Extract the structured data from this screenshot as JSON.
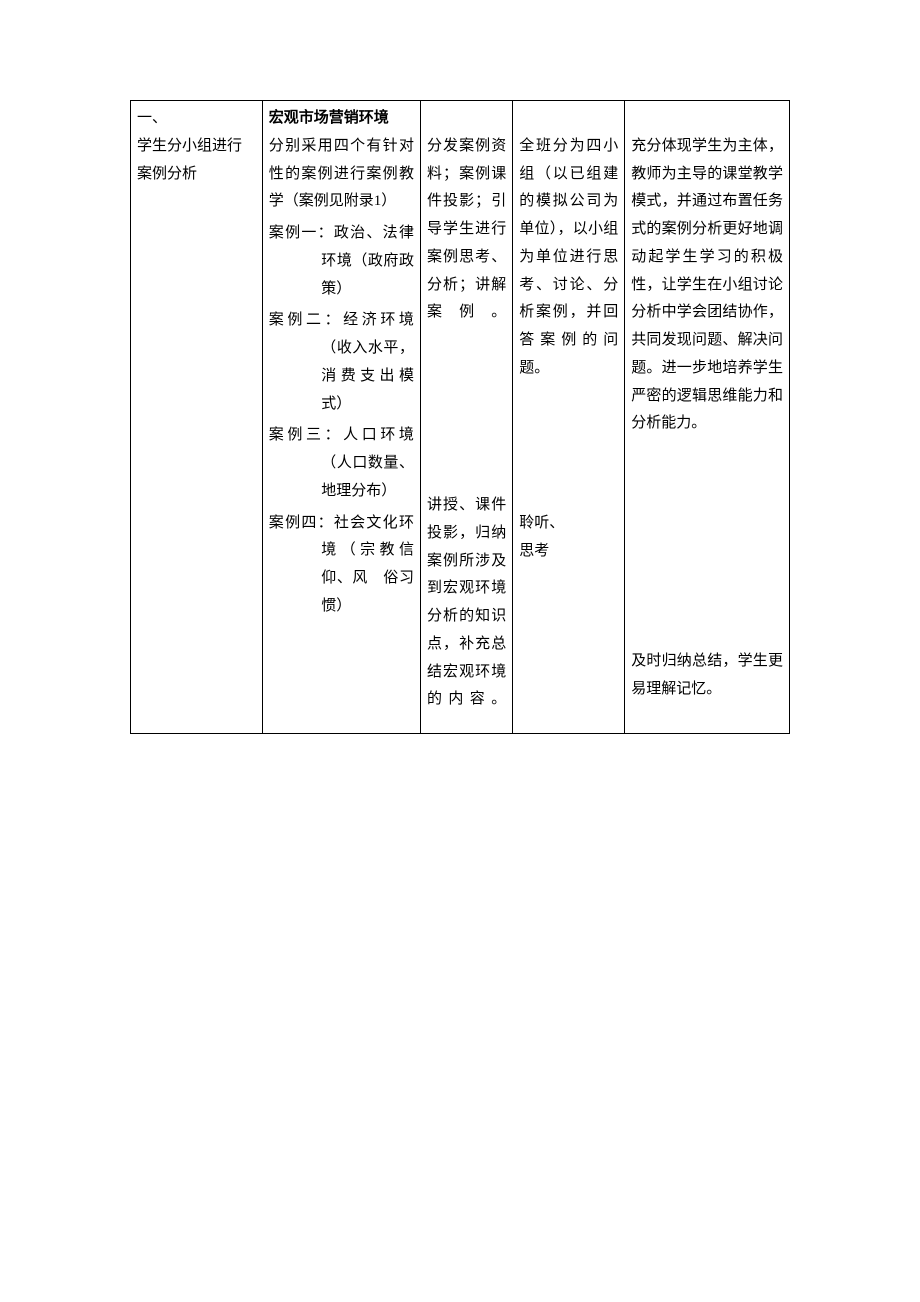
{
  "table": {
    "colors": {
      "border": "#000000",
      "text": "#000000",
      "background": "#ffffff"
    },
    "font": {
      "family": "SimSun",
      "size_pt": 11,
      "line_height": 1.85
    },
    "column_widths_pct": [
      20,
      24,
      14,
      17,
      25
    ],
    "row1": {
      "col1": {
        "line1": "一、",
        "line2": "学生分小组进行案例分析"
      },
      "col2": {
        "title": "宏观市场营销环境",
        "intro": "分别采用四个有针对性的案例进行案例教学（案例见附录1）",
        "case1_label": "案例一：",
        "case1_text": "政治、法律环境（政府政策）",
        "case2_label": "案例二：",
        "case2_text": "经济环境（收入水平，消费支出模式）",
        "case3_label": "案例三：",
        "case3_text": "人口环境（人口数量、地理分布）",
        "case4_label": "案例四：",
        "case4_text": "社会文化环境（宗教信仰、风　俗习惯）"
      },
      "col3_a": "分发案例资料；案例课件投影；引导学生进行案例思考、分析；讲解案例。",
      "col3_b": "讲授、课件投影，归纳案例所涉及到宏观环境分析的知识点，补充总结宏观环境的内容。",
      "col4_a": "全班分为四小组（以已组建的模拟公司为单位），以小组为单位进行思考、讨论、分析案例，并回答案例的问题。",
      "col4_b_line1": "聆听、",
      "col4_b_line2": "思考",
      "col5_a": "充分体现学生为主体，教师为主导的课堂教学模式，并通过布置任务式的案例分析更好地调动起学生学习的积极性，让学生在小组讨论分析中学会团结协作，共同发现问题、解决问题。进一步地培养学生严密的逻辑思维能力和分析能力。",
      "col5_b": "及时归纳总结，学生更易理解记忆。"
    }
  }
}
